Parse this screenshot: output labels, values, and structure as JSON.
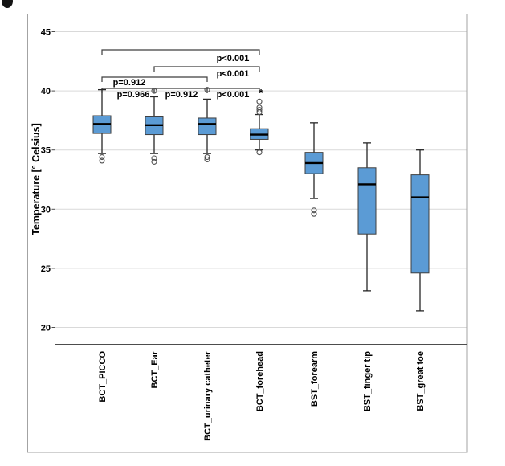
{
  "figure": {
    "background": "#ffffff",
    "outer_border_color": "#a3a3a3",
    "axis_color": "#4d4d4d",
    "gridline_color": "#d9d9d9"
  },
  "chart_data": {
    "type": "boxplot",
    "title": "",
    "xlabel": "",
    "ylabel": "Temperature [° Celsius]",
    "y_ticks": [
      45,
      40,
      35,
      30,
      25,
      20
    ],
    "ylim": [
      18.6,
      46.5
    ],
    "grid": "horizontal",
    "box_color": "#5b9bd5",
    "box_border_color": "#3f3f3f",
    "median_color": "#000000",
    "outlier_marker": "circle",
    "extreme_marker": "*",
    "boxes": [
      {
        "category": "BCT_PICCO",
        "whisker_low": 34.7,
        "q1": 36.4,
        "median": 37.2,
        "q3": 37.9,
        "whisker_high": 40.1,
        "outliers": [
          34.4,
          34.1
        ],
        "extreme_outliers": []
      },
      {
        "category": "BCT_Ear",
        "whisker_low": 34.7,
        "q1": 36.3,
        "median": 37.1,
        "q3": 37.8,
        "whisker_high": 39.5,
        "outliers": [
          40.0,
          34.3,
          34.0
        ],
        "extreme_outliers": []
      },
      {
        "category": "BCT_urinary catheter",
        "whisker_low": 34.7,
        "q1": 36.3,
        "median": 37.2,
        "q3": 37.7,
        "whisker_high": 39.3,
        "outliers": [
          40.1,
          34.4,
          34.2
        ],
        "extreme_outliers": []
      },
      {
        "category": "BCT_forehead",
        "whisker_low": 35.0,
        "q1": 35.9,
        "median": 36.3,
        "q3": 36.8,
        "whisker_high": 38.0,
        "outliers": [
          39.1,
          38.6,
          38.4,
          38.2,
          34.8
        ],
        "extreme_outliers": [
          40.0
        ]
      },
      {
        "category": "BST_forearm",
        "whisker_low": 30.9,
        "q1": 33.0,
        "median": 33.9,
        "q3": 34.8,
        "whisker_high": 37.3,
        "outliers": [
          29.9,
          29.6
        ],
        "extreme_outliers": []
      },
      {
        "category": "BST_finger tip",
        "whisker_low": 23.1,
        "q1": 27.9,
        "median": 32.1,
        "q3": 33.5,
        "whisker_high": 35.6,
        "outliers": [],
        "extreme_outliers": []
      },
      {
        "category": "BST_great toe",
        "whisker_low": 21.4,
        "q1": 24.6,
        "median": 31.0,
        "q3": 32.9,
        "whisker_high": 35.0,
        "outliers": [],
        "extreme_outliers": []
      }
    ],
    "significance_brackets": [
      {
        "from": "BCT_PICCO",
        "to": "BCT_forehead",
        "label": "p<0.001"
      },
      {
        "from": "BCT_Ear",
        "to": "BCT_forehead",
        "label": "p<0.001"
      },
      {
        "from": "BCT_PICCO",
        "to": "BCT_urinary catheter",
        "label": "p=0.912"
      },
      {
        "from": "BCT_PICCO",
        "to": "BCT_Ear",
        "label": "p=0.966"
      },
      {
        "from": "BCT_Ear",
        "to": "BCT_urinary catheter",
        "label": "p=0.912"
      },
      {
        "from": "BCT_urinary catheter",
        "to": "BCT_forehead",
        "label": "p<0.001"
      }
    ]
  }
}
